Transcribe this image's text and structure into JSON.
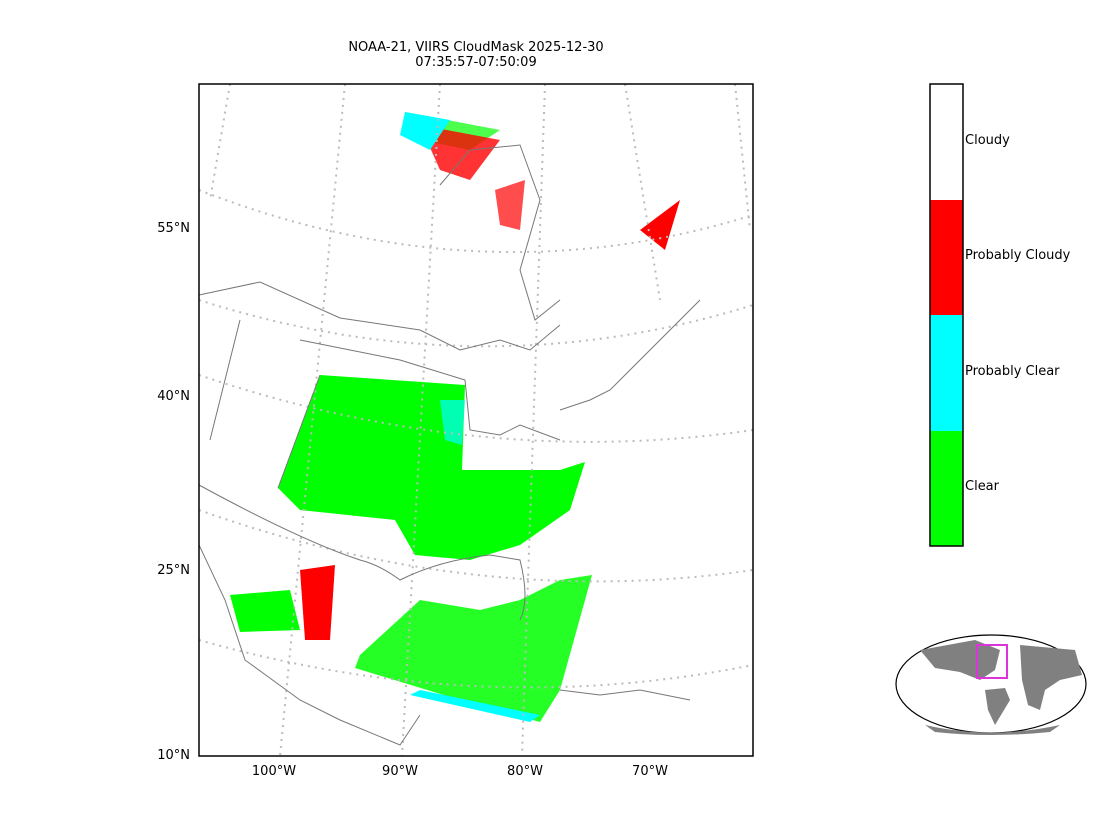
{
  "title": {
    "line1": "NOAA-21, VIIRS CloudMask 2025-12-30",
    "line2": "07:35:57-07:50:09"
  },
  "map": {
    "lat_labels": [
      "55°N",
      "40°N",
      "25°N",
      "10°N"
    ],
    "lon_labels": [
      "100°W",
      "90°W",
      "80°W",
      "70°W"
    ]
  },
  "colorbar": {
    "categories": [
      {
        "label": "Cloudy",
        "color": "#ffffff"
      },
      {
        "label": "Probably Cloudy",
        "color": "#ff0000"
      },
      {
        "label": "Probably Clear",
        "color": "#00ffff"
      },
      {
        "label": "Clear",
        "color": "#00ff00"
      }
    ]
  },
  "inset": {
    "land_color": "#808080",
    "box_color": "#dd33dd"
  }
}
